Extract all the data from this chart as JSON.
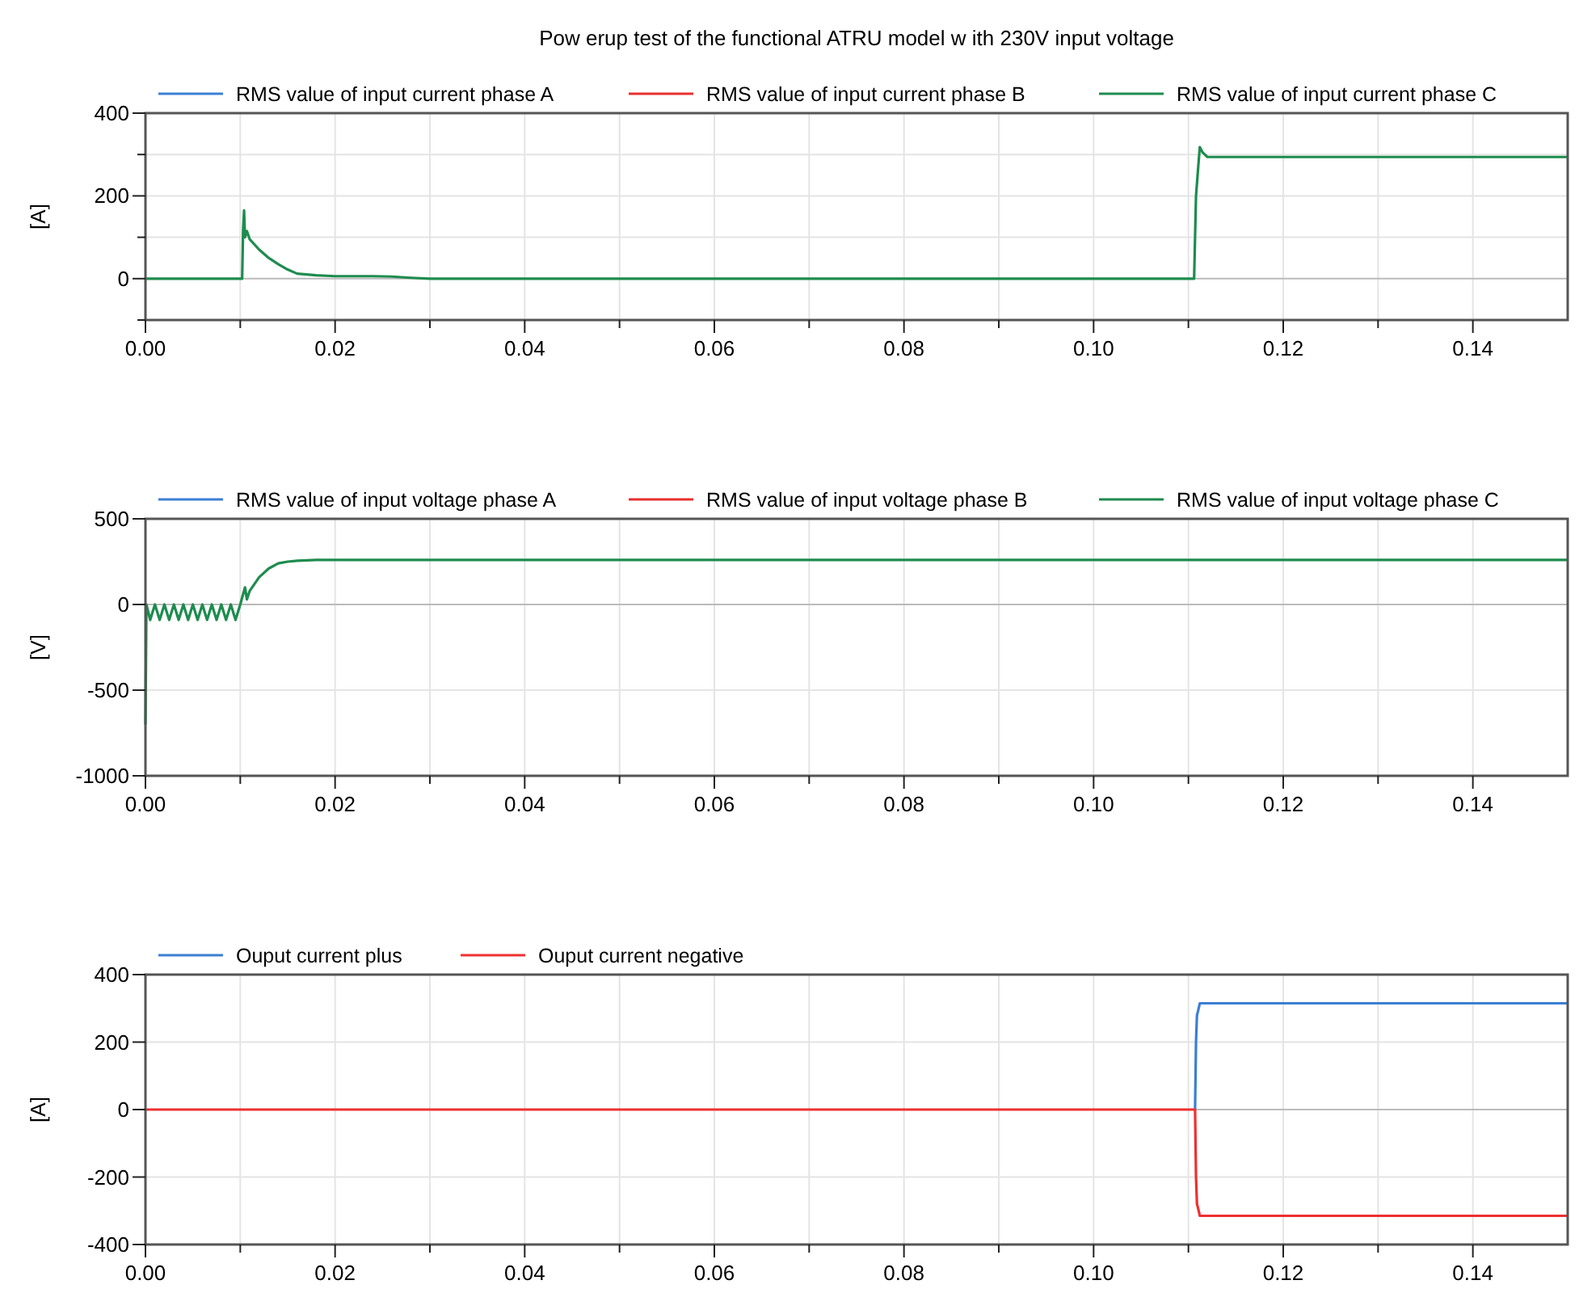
{
  "chart_data": [
    {
      "type": "line",
      "title": "Pow erup test of the functional ATRU model w ith 230V input voltage",
      "ylabel": "[A]",
      "legend": "top left",
      "grid": true,
      "xlim": [
        0,
        0.15
      ],
      "ylim": [
        -100,
        400
      ],
      "xticks": [
        {
          "value": 0,
          "label": "0.00"
        },
        {
          "value": 0.01,
          "label": null
        },
        {
          "value": 0.02,
          "label": "0.02"
        },
        {
          "value": 0.03,
          "label": null
        },
        {
          "value": 0.04,
          "label": "0.04"
        },
        {
          "value": 0.05,
          "label": null
        },
        {
          "value": 0.06,
          "label": "0.06"
        },
        {
          "value": 0.07,
          "label": null
        },
        {
          "value": 0.08,
          "label": "0.08"
        },
        {
          "value": 0.09,
          "label": null
        },
        {
          "value": 0.1,
          "label": "0.10"
        },
        {
          "value": 0.11,
          "label": null
        },
        {
          "value": 0.12,
          "label": "0.12"
        },
        {
          "value": 0.13,
          "label": null
        },
        {
          "value": 0.14,
          "label": "0.14"
        }
      ],
      "yticks": [
        {
          "value": -100,
          "label": null
        },
        0,
        {
          "value": 100,
          "label": null
        },
        200,
        {
          "value": 300,
          "label": null
        },
        400
      ],
      "x": [
        0,
        0.0102,
        0.0103,
        0.0104,
        0.0105,
        0.0107,
        0.011,
        0.012,
        0.013,
        0.014,
        0.015,
        0.016,
        0.018,
        0.02,
        0.024,
        0.026,
        0.028,
        0.03,
        0.06,
        0.1,
        0.1106,
        0.1107,
        0.1108,
        0.111,
        0.1112,
        0.1115,
        0.112,
        0.13,
        0.15
      ],
      "series": [
        {
          "name": "RMS value of input current phase A",
          "color": "#3b7fd4",
          "values": [
            null,
            null,
            null,
            null,
            null,
            null,
            null,
            null,
            null,
            null,
            null,
            null,
            null,
            null,
            null,
            null,
            null,
            null,
            null,
            null,
            null,
            null,
            null,
            null,
            null,
            null,
            null,
            null,
            null
          ]
        },
        {
          "name": "RMS value of input current phase B",
          "color": "#e8302f",
          "values": [
            null,
            null,
            null,
            null,
            null,
            null,
            null,
            null,
            null,
            null,
            null,
            null,
            null,
            null,
            null,
            null,
            null,
            null,
            null,
            null,
            null,
            null,
            null,
            null,
            null,
            null,
            null,
            null,
            null
          ]
        },
        {
          "name": "RMS value of input current phase C",
          "color": "#1e8c4e",
          "values": [
            0,
            0,
            120,
            165,
            100,
            115,
            95,
            70,
            50,
            35,
            22,
            12,
            8,
            6,
            6,
            5,
            2,
            0,
            0,
            0,
            0,
            100,
            200,
            260,
            318,
            305,
            294,
            294,
            294
          ]
        }
      ]
    },
    {
      "type": "line",
      "ylabel": "[V]",
      "legend": "top left",
      "grid": true,
      "xlim": [
        0,
        0.15
      ],
      "ylim": [
        -1000,
        500
      ],
      "xticks": [
        {
          "value": 0,
          "label": "0.00"
        },
        {
          "value": 0.01,
          "label": null
        },
        {
          "value": 0.02,
          "label": "0.02"
        },
        {
          "value": 0.03,
          "label": null
        },
        {
          "value": 0.04,
          "label": "0.04"
        },
        {
          "value": 0.05,
          "label": null
        },
        {
          "value": 0.06,
          "label": "0.06"
        },
        {
          "value": 0.07,
          "label": null
        },
        {
          "value": 0.08,
          "label": "0.08"
        },
        {
          "value": 0.09,
          "label": null
        },
        {
          "value": 0.1,
          "label": "0.10"
        },
        {
          "value": 0.11,
          "label": null
        },
        {
          "value": 0.12,
          "label": "0.12"
        },
        {
          "value": 0.13,
          "label": null
        },
        {
          "value": 0.14,
          "label": "0.14"
        }
      ],
      "yticks": [
        -1000,
        -500,
        0,
        500
      ],
      "x": [
        0,
        0.0001,
        0.0005,
        0.001,
        0.0015,
        0.002,
        0.0025,
        0.003,
        0.0035,
        0.004,
        0.0045,
        0.005,
        0.0055,
        0.006,
        0.0065,
        0.007,
        0.0075,
        0.008,
        0.0085,
        0.009,
        0.0095,
        0.01,
        0.0105,
        0.0107,
        0.011,
        0.012,
        0.013,
        0.014,
        0.015,
        0.016,
        0.018,
        0.15
      ],
      "series": [
        {
          "name": "RMS value of input voltage phase A",
          "color": "#3b7fd4",
          "values": [
            null,
            null,
            null,
            null,
            null,
            null,
            null,
            null,
            null,
            null,
            null,
            null,
            null,
            null,
            null,
            null,
            null,
            null,
            null,
            null,
            null,
            null,
            null,
            null,
            null,
            null,
            null,
            null,
            null,
            null,
            null,
            null
          ]
        },
        {
          "name": "RMS value of input voltage phase B",
          "color": "#e8302f",
          "values": [
            null,
            null,
            null,
            null,
            null,
            null,
            null,
            null,
            null,
            null,
            null,
            null,
            null,
            null,
            null,
            null,
            null,
            null,
            null,
            null,
            null,
            null,
            null,
            null,
            null,
            null,
            null,
            null,
            null,
            null,
            null,
            null
          ]
        },
        {
          "name": "RMS value of input voltage phase C",
          "color": "#1e8c4e",
          "values": [
            -700,
            0,
            -90,
            0,
            -90,
            0,
            -90,
            0,
            -90,
            0,
            -90,
            0,
            -90,
            0,
            -90,
            0,
            -90,
            0,
            -90,
            0,
            -90,
            0,
            100,
            30,
            80,
            160,
            210,
            240,
            250,
            255,
            260,
            260
          ]
        }
      ]
    },
    {
      "type": "line",
      "ylabel": "[A]",
      "legend": "top left",
      "grid": true,
      "xlim": [
        0,
        0.15
      ],
      "ylim": [
        -400,
        400
      ],
      "xticks": [
        {
          "value": 0,
          "label": "0.00"
        },
        {
          "value": 0.01,
          "label": null
        },
        {
          "value": 0.02,
          "label": "0.02"
        },
        {
          "value": 0.03,
          "label": null
        },
        {
          "value": 0.04,
          "label": "0.04"
        },
        {
          "value": 0.05,
          "label": null
        },
        {
          "value": 0.06,
          "label": "0.06"
        },
        {
          "value": 0.07,
          "label": null
        },
        {
          "value": 0.08,
          "label": "0.08"
        },
        {
          "value": 0.09,
          "label": null
        },
        {
          "value": 0.1,
          "label": "0.10"
        },
        {
          "value": 0.11,
          "label": null
        },
        {
          "value": 0.12,
          "label": "0.12"
        },
        {
          "value": 0.13,
          "label": null
        },
        {
          "value": 0.14,
          "label": "0.14"
        }
      ],
      "yticks": [
        -400,
        -200,
        0,
        200,
        400
      ],
      "x": [
        0,
        0.1107,
        0.1108,
        0.1109,
        0.111,
        0.1112,
        0.15
      ],
      "series": [
        {
          "name": "Ouput current plus",
          "color": "#3b7fd4",
          "values": [
            null,
            0,
            200,
            280,
            290,
            315,
            315
          ]
        },
        {
          "name": "Ouput current negative",
          "color": "#ee3030",
          "values": [
            0,
            0,
            -200,
            -280,
            -290,
            -315,
            -315
          ]
        }
      ]
    }
  ]
}
